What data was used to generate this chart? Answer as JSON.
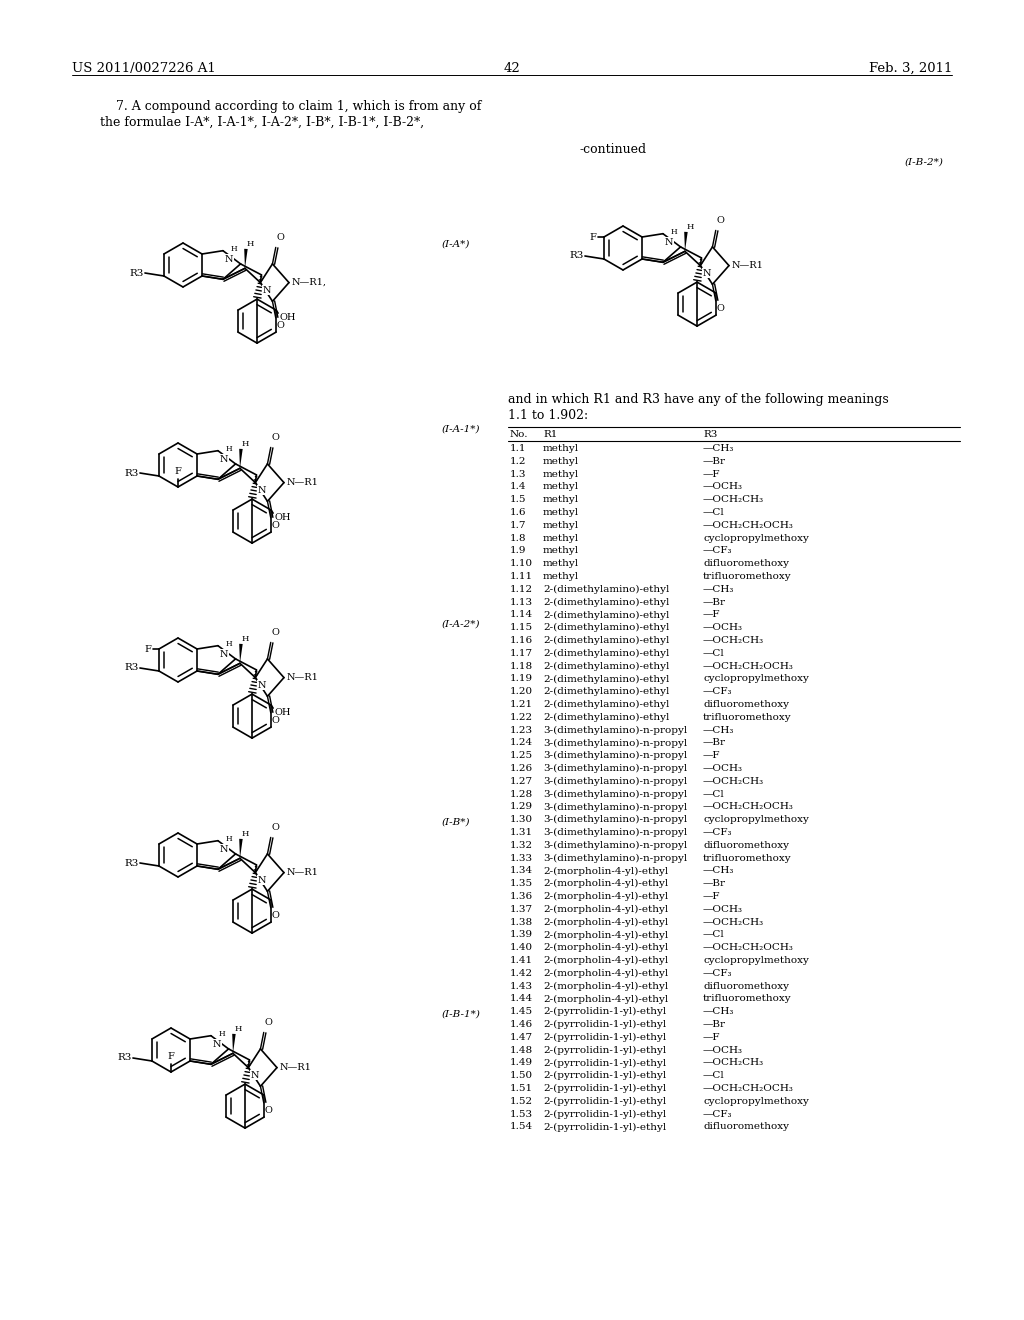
{
  "page_header_left": "US 2011/0027226 A1",
  "page_header_right": "Feb. 3, 2011",
  "page_number": "42",
  "bg_color": "#ffffff",
  "claim_text_line1": "    7. A compound according to claim 1, which is from any of",
  "claim_text_line2": "the formulae I-A*, I-A-1*, I-A-2*, I-B*, I-B-1*, I-B-2*,",
  "continued_label": "-continued",
  "formula_label_IA": "(I-A*)",
  "formula_label_IA1": "(I-A-1*)",
  "formula_label_IA2": "(I-A-2*)",
  "formula_label_IB": "(I-B*)",
  "formula_label_IB1": "(I-B-1*)",
  "formula_label_IB2": "(I-B-2*)",
  "meanings_text_line1": "and in which R1 and R3 have any of the following meanings",
  "meanings_text_line2": "1.1 to 1.902:",
  "table_header": [
    "No.",
    "R1",
    "R3"
  ],
  "table_rows": [
    [
      "1.1",
      "methyl",
      "—CH₃"
    ],
    [
      "1.2",
      "methyl",
      "—Br"
    ],
    [
      "1.3",
      "methyl",
      "—F"
    ],
    [
      "1.4",
      "methyl",
      "—OCH₃"
    ],
    [
      "1.5",
      "methyl",
      "—OCH₂CH₃"
    ],
    [
      "1.6",
      "methyl",
      "—Cl"
    ],
    [
      "1.7",
      "methyl",
      "—OCH₂CH₂OCH₃"
    ],
    [
      "1.8",
      "methyl",
      "cyclopropylmethoxy"
    ],
    [
      "1.9",
      "methyl",
      "—CF₃"
    ],
    [
      "1.10",
      "methyl",
      "difluoromethoxy"
    ],
    [
      "1.11",
      "methyl",
      "trifluoromethoxy"
    ],
    [
      "1.12",
      "2-(dimethylamino)-ethyl",
      "—CH₃"
    ],
    [
      "1.13",
      "2-(dimethylamino)-ethyl",
      "—Br"
    ],
    [
      "1.14",
      "2-(dimethylamino)-ethyl",
      "—F"
    ],
    [
      "1.15",
      "2-(dimethylamino)-ethyl",
      "—OCH₃"
    ],
    [
      "1.16",
      "2-(dimethylamino)-ethyl",
      "—OCH₂CH₃"
    ],
    [
      "1.17",
      "2-(dimethylamino)-ethyl",
      "—Cl"
    ],
    [
      "1.18",
      "2-(dimethylamino)-ethyl",
      "—OCH₂CH₂OCH₃"
    ],
    [
      "1.19",
      "2-(dimethylamino)-ethyl",
      "cyclopropylmethoxy"
    ],
    [
      "1.20",
      "2-(dimethylamino)-ethyl",
      "—CF₃"
    ],
    [
      "1.21",
      "2-(dimethylamino)-ethyl",
      "difluoromethoxy"
    ],
    [
      "1.22",
      "2-(dimethylamino)-ethyl",
      "trifluoromethoxy"
    ],
    [
      "1.23",
      "3-(dimethylamino)-n-propyl",
      "—CH₃"
    ],
    [
      "1.24",
      "3-(dimethylamino)-n-propyl",
      "—Br"
    ],
    [
      "1.25",
      "3-(dimethylamino)-n-propyl",
      "—F"
    ],
    [
      "1.26",
      "3-(dimethylamino)-n-propyl",
      "—OCH₃"
    ],
    [
      "1.27",
      "3-(dimethylamino)-n-propyl",
      "—OCH₂CH₃"
    ],
    [
      "1.28",
      "3-(dimethylamino)-n-propyl",
      "—Cl"
    ],
    [
      "1.29",
      "3-(dimethylamino)-n-propyl",
      "—OCH₂CH₂OCH₃"
    ],
    [
      "1.30",
      "3-(dimethylamino)-n-propyl",
      "cyclopropylmethoxy"
    ],
    [
      "1.31",
      "3-(dimethylamino)-n-propyl",
      "—CF₃"
    ],
    [
      "1.32",
      "3-(dimethylamino)-n-propyl",
      "difluoromethoxy"
    ],
    [
      "1.33",
      "3-(dimethylamino)-n-propyl",
      "trifluoromethoxy"
    ],
    [
      "1.34",
      "2-(morpholin-4-yl)-ethyl",
      "—CH₃"
    ],
    [
      "1.35",
      "2-(morpholin-4-yl)-ethyl",
      "—Br"
    ],
    [
      "1.36",
      "2-(morpholin-4-yl)-ethyl",
      "—F"
    ],
    [
      "1.37",
      "2-(morpholin-4-yl)-ethyl",
      "—OCH₃"
    ],
    [
      "1.38",
      "2-(morpholin-4-yl)-ethyl",
      "—OCH₂CH₃"
    ],
    [
      "1.39",
      "2-(morpholin-4-yl)-ethyl",
      "—Cl"
    ],
    [
      "1.40",
      "2-(morpholin-4-yl)-ethyl",
      "—OCH₂CH₂OCH₃"
    ],
    [
      "1.41",
      "2-(morpholin-4-yl)-ethyl",
      "cyclopropylmethoxy"
    ],
    [
      "1.42",
      "2-(morpholin-4-yl)-ethyl",
      "—CF₃"
    ],
    [
      "1.43",
      "2-(morpholin-4-yl)-ethyl",
      "difluoromethoxy"
    ],
    [
      "1.44",
      "2-(morpholin-4-yl)-ethyl",
      "trifluoromethoxy"
    ],
    [
      "1.45",
      "2-(pyrrolidin-1-yl)-ethyl",
      "—CH₃"
    ],
    [
      "1.46",
      "2-(pyrrolidin-1-yl)-ethyl",
      "—Br"
    ],
    [
      "1.47",
      "2-(pyrrolidin-1-yl)-ethyl",
      "—F"
    ],
    [
      "1.48",
      "2-(pyrrolidin-1-yl)-ethyl",
      "—OCH₃"
    ],
    [
      "1.49",
      "2-(pyrrolidin-1-yl)-ethyl",
      "—OCH₂CH₃"
    ],
    [
      "1.50",
      "2-(pyrrolidin-1-yl)-ethyl",
      "—Cl"
    ],
    [
      "1.51",
      "2-(pyrrolidin-1-yl)-ethyl",
      "—OCH₂CH₂OCH₃"
    ],
    [
      "1.52",
      "2-(pyrrolidin-1-yl)-ethyl",
      "cyclopropylmethoxy"
    ],
    [
      "1.53",
      "2-(pyrrolidin-1-yl)-ethyl",
      "—CF₃"
    ],
    [
      "1.54",
      "2-(pyrrolidin-1-yl)-ethyl",
      "difluoromethoxy"
    ]
  ],
  "font_size_title": 10.0,
  "font_size_body": 7.5,
  "font_size_claim": 9.0,
  "font_size_page": 9.5,
  "font_size_formula": 7.5,
  "font_size_chem": 7.0
}
